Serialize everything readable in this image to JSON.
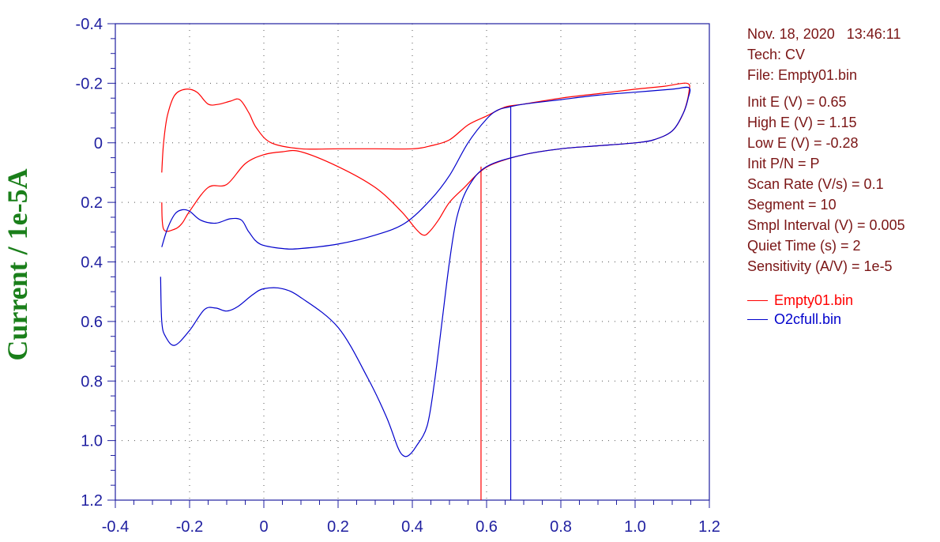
{
  "chart_data": {
    "type": "line",
    "title": "",
    "xlabel": "",
    "ylabel": "Current / 1e-5A",
    "xlim": [
      -0.4,
      1.2
    ],
    "ylim": [
      -0.4,
      1.2
    ],
    "y_inverted": true,
    "xticks": [
      "-0.4",
      "-0.2",
      "0",
      "0.2",
      "0.4",
      "0.6",
      "0.8",
      "1.0",
      "1.2"
    ],
    "yticks": [
      "-0.4",
      "-0.2",
      "0",
      "0.2",
      "0.4",
      "0.6",
      "0.8",
      "1.0",
      "1.2"
    ],
    "grid": "dotted",
    "series": [
      {
        "name": "Empty01.bin",
        "color": "#ff0000",
        "points": [
          [
            -0.275,
            0.1
          ],
          [
            -0.27,
            0.0
          ],
          [
            -0.26,
            -0.09
          ],
          [
            -0.24,
            -0.16
          ],
          [
            -0.21,
            -0.18
          ],
          [
            -0.18,
            -0.17
          ],
          [
            -0.15,
            -0.13
          ],
          [
            -0.12,
            -0.13
          ],
          [
            -0.09,
            -0.14
          ],
          [
            -0.065,
            -0.145
          ],
          [
            -0.04,
            -0.1
          ],
          [
            -0.02,
            -0.05
          ],
          [
            0.02,
            0.0
          ],
          [
            0.1,
            0.02
          ],
          [
            0.2,
            0.02
          ],
          [
            0.3,
            0.02
          ],
          [
            0.4,
            0.02
          ],
          [
            0.45,
            0.01
          ],
          [
            0.5,
            -0.01
          ],
          [
            0.55,
            -0.06
          ],
          [
            0.6,
            -0.09
          ],
          [
            0.65,
            -0.12
          ],
          [
            0.7,
            -0.13
          ],
          [
            0.8,
            -0.15
          ],
          [
            0.9,
            -0.165
          ],
          [
            1.0,
            -0.18
          ],
          [
            1.08,
            -0.19
          ],
          [
            1.14,
            -0.2
          ],
          [
            1.145,
            -0.17
          ],
          [
            1.13,
            -0.1
          ],
          [
            1.1,
            -0.04
          ],
          [
            1.05,
            -0.01
          ],
          [
            1.0,
            0.0
          ],
          [
            0.9,
            0.01
          ],
          [
            0.8,
            0.02
          ],
          [
            0.7,
            0.04
          ],
          [
            0.62,
            0.07
          ],
          [
            0.58,
            0.1
          ],
          [
            0.54,
            0.15
          ],
          [
            0.5,
            0.2
          ],
          [
            0.47,
            0.26
          ],
          [
            0.445,
            0.3
          ],
          [
            0.43,
            0.31
          ],
          [
            0.41,
            0.29
          ],
          [
            0.37,
            0.23
          ],
          [
            0.3,
            0.15
          ],
          [
            0.2,
            0.08
          ],
          [
            0.1,
            0.03
          ],
          [
            0.05,
            0.03
          ],
          [
            0.0,
            0.04
          ],
          [
            -0.05,
            0.07
          ],
          [
            -0.1,
            0.14
          ],
          [
            -0.15,
            0.15
          ],
          [
            -0.2,
            0.23
          ],
          [
            -0.22,
            0.27
          ],
          [
            -0.24,
            0.29
          ],
          [
            -0.27,
            0.29
          ],
          [
            -0.275,
            0.2
          ]
        ],
        "marker_x": 0.585,
        "marker_y": 0.08
      },
      {
        "name": "O2cfull.bin",
        "color": "#0000cc",
        "points": [
          [
            -0.275,
            0.35
          ],
          [
            -0.26,
            0.29
          ],
          [
            -0.24,
            0.24
          ],
          [
            -0.22,
            0.225
          ],
          [
            -0.2,
            0.23
          ],
          [
            -0.17,
            0.26
          ],
          [
            -0.13,
            0.27
          ],
          [
            -0.09,
            0.255
          ],
          [
            -0.06,
            0.26
          ],
          [
            -0.04,
            0.3
          ],
          [
            -0.01,
            0.34
          ],
          [
            0.05,
            0.355
          ],
          [
            0.1,
            0.355
          ],
          [
            0.2,
            0.34
          ],
          [
            0.3,
            0.31
          ],
          [
            0.38,
            0.27
          ],
          [
            0.45,
            0.19
          ],
          [
            0.5,
            0.11
          ],
          [
            0.55,
            0.0
          ],
          [
            0.6,
            -0.08
          ],
          [
            0.63,
            -0.11
          ],
          [
            0.66,
            -0.12
          ],
          [
            0.7,
            -0.13
          ],
          [
            0.8,
            -0.145
          ],
          [
            0.9,
            -0.16
          ],
          [
            1.0,
            -0.17
          ],
          [
            1.1,
            -0.18
          ],
          [
            1.145,
            -0.185
          ],
          [
            1.143,
            -0.15
          ],
          [
            1.13,
            -0.1
          ],
          [
            1.1,
            -0.04
          ],
          [
            1.05,
            -0.01
          ],
          [
            1.0,
            0.0
          ],
          [
            0.9,
            0.01
          ],
          [
            0.8,
            0.02
          ],
          [
            0.7,
            0.04
          ],
          [
            0.6,
            0.08
          ],
          [
            0.55,
            0.15
          ],
          [
            0.52,
            0.25
          ],
          [
            0.5,
            0.4
          ],
          [
            0.48,
            0.6
          ],
          [
            0.46,
            0.8
          ],
          [
            0.44,
            0.95
          ],
          [
            0.41,
            1.02
          ],
          [
            0.39,
            1.05
          ],
          [
            0.375,
            1.05
          ],
          [
            0.36,
            1.02
          ],
          [
            0.33,
            0.92
          ],
          [
            0.28,
            0.79
          ],
          [
            0.2,
            0.62
          ],
          [
            0.1,
            0.52
          ],
          [
            0.05,
            0.49
          ],
          [
            0.0,
            0.49
          ],
          [
            -0.03,
            0.51
          ],
          [
            -0.07,
            0.55
          ],
          [
            -0.1,
            0.565
          ],
          [
            -0.13,
            0.555
          ],
          [
            -0.16,
            0.56
          ],
          [
            -0.2,
            0.63
          ],
          [
            -0.24,
            0.68
          ],
          [
            -0.265,
            0.65
          ],
          [
            -0.275,
            0.6
          ],
          [
            -0.278,
            0.45
          ]
        ],
        "marker_x": 0.665,
        "marker_y": -0.12
      }
    ]
  },
  "info": {
    "date_line": "Nov. 18, 2020   13:46:11",
    "tech": "Tech: CV",
    "file": "File: Empty01.bin",
    "params": [
      "Init E (V) = 0.65",
      "High E (V) = 1.15",
      "Low E (V) = -0.28",
      "Init P/N = P",
      "Scan Rate (V/s) = 0.1",
      "Segment = 10",
      "Smpl Interval (V) = 0.005",
      "Quiet Time (s) = 2",
      "Sensitivity (A/V) = 1e-5"
    ]
  },
  "legend": [
    {
      "label": "Empty01.bin",
      "color": "#ff0000"
    },
    {
      "label": "O2cfull.bin",
      "color": "#0000cc"
    }
  ]
}
